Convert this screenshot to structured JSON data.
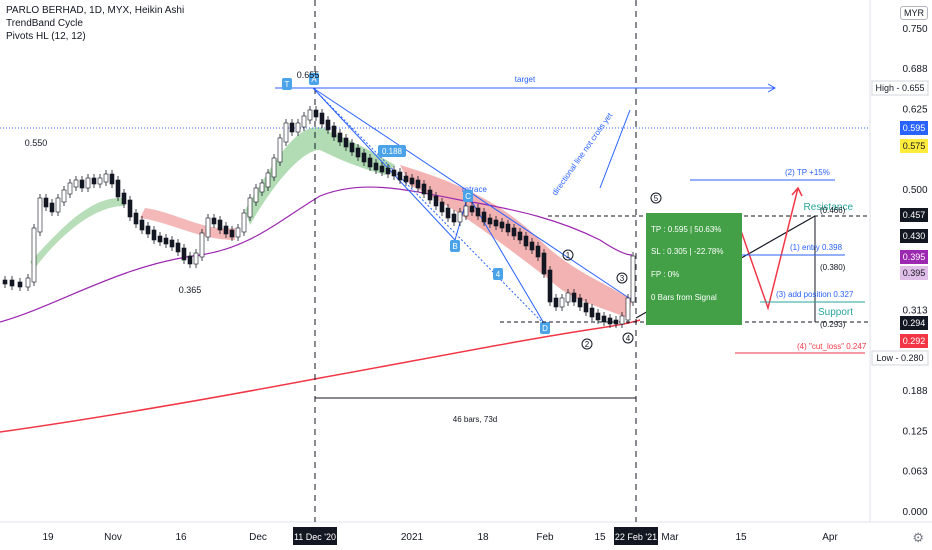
{
  "header": {
    "symbol": "PARLO BERHAD, 1D, MYX, Heikin Ashi",
    "indicator1": "TrendBand Cycle",
    "indicator2": "Pivots HL (12, 12)"
  },
  "currency": "MYR",
  "chart_data": {
    "type": "candlestick",
    "ylim": [
      0,
      0.75
    ],
    "y_ticks": [
      0.75,
      0.688,
      0.625,
      0.5,
      0.375,
      0.313,
      0.188,
      0.125,
      0.063,
      0.0
    ],
    "y_tick_labels": [
      "0.750",
      "0.688",
      "0.625",
      "0.500",
      "0.375",
      "0.313",
      "0.188",
      "0.125",
      "0.063",
      "0.000"
    ],
    "x_labels": [
      "19",
      "Nov",
      "16",
      "Dec",
      "2021",
      "18",
      "Feb",
      "15",
      "Mar",
      "15",
      "Apr"
    ],
    "x_highlight": [
      "11 Dec '20",
      "22 Feb '21"
    ],
    "price_badges": [
      {
        "text": "High - 0.655",
        "value": 0.655,
        "bg": "#ffffff",
        "fg": "#131722",
        "border": true
      },
      {
        "text": "0.595",
        "value": 0.595,
        "bg": "#2962ff",
        "fg": "#ffffff"
      },
      {
        "text": "0.575",
        "value": 0.575,
        "bg": "#ffeb3b",
        "fg": "#131722"
      },
      {
        "text": "0.457",
        "value": 0.457,
        "bg": "#131722",
        "fg": "#ffffff"
      },
      {
        "text": "0.430",
        "value": 0.43,
        "bg": "#131722",
        "fg": "#ffffff"
      },
      {
        "text": "0.395",
        "value": 0.395,
        "bg": "#9c27b0",
        "fg": "#ffffff"
      },
      {
        "text": "0.395",
        "value": 0.395,
        "bg": "#e1bee7",
        "fg": "#131722"
      },
      {
        "text": "0.294",
        "value": 0.294,
        "bg": "#131722",
        "fg": "#ffffff"
      },
      {
        "text": "0.292",
        "value": 0.292,
        "bg": "#f23645",
        "fg": "#ffffff"
      },
      {
        "text": "Low - 0.280",
        "value": 0.28,
        "bg": "#ffffff",
        "fg": "#131722",
        "border": true
      }
    ],
    "price_labels": [
      "0.550",
      "0.365",
      "0.655"
    ],
    "annotations": {
      "target": "target",
      "retrace": "retrace",
      "dirline": "directional line not cross yet",
      "fib": "0.188",
      "resistance": "Resistance",
      "support": "Support",
      "range": "46 bars, 73d",
      "tp": "TP : 0.595 | 50.63%",
      "sl": "SL : 0.305 | -22.78%",
      "fp": "FP : 0%",
      "bars": "0 Bars from Signal",
      "tp15": "(2) TP +15%",
      "entry": "(1) entry 0.398",
      "addpos": "(3) add position 0.327",
      "cutloss": "(4) \"cut_loss\" 0.247",
      "lvl466": "(0.466)",
      "lvl380": "(0.380)",
      "lvl293": "(0.293)",
      "wave": [
        "1",
        "2",
        "3",
        "4",
        "5"
      ],
      "points": [
        "A",
        "B",
        "C",
        "D",
        "4",
        "T"
      ]
    }
  }
}
